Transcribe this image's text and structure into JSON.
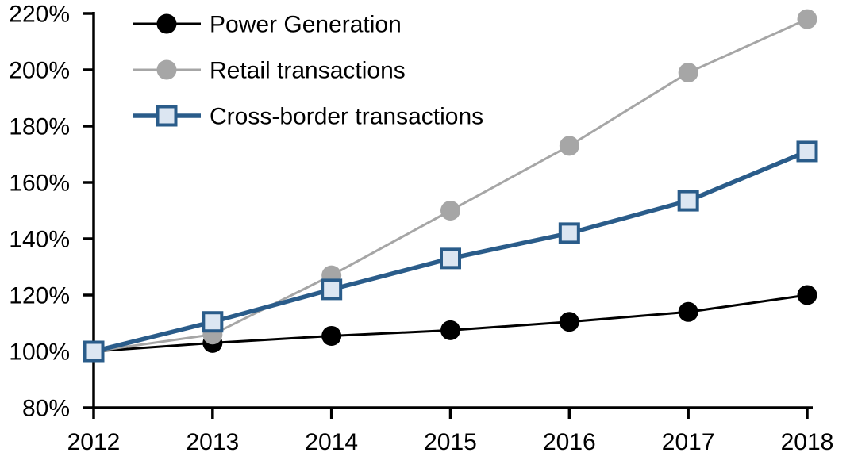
{
  "chart_data": {
    "type": "line",
    "title": "",
    "x_categories": [
      "2012",
      "2013",
      "2014",
      "2015",
      "2016",
      "2017",
      "2018"
    ],
    "y_axis": {
      "min": 80,
      "max": 220,
      "step": 20,
      "tick_suffix": "%",
      "tick_labels": [
        "80%",
        "100%",
        "120%",
        "140%",
        "160%",
        "180%",
        "200%",
        "220%"
      ]
    },
    "grid": false,
    "legend_position": "top-left-inside",
    "background": "#FFFFFF",
    "axis_color": "#000000",
    "text_color": "#000000",
    "series": [
      {
        "name": "Power Generation",
        "color": "#000000",
        "line_width": 3,
        "marker": "circle",
        "marker_fill": "#000000",
        "values": [
          100,
          103,
          105.5,
          107.5,
          110.5,
          114,
          120
        ]
      },
      {
        "name": "Retail transactions",
        "color": "#A6A6A6",
        "line_width": 3,
        "marker": "circle",
        "marker_fill": "#A6A6A6",
        "values": [
          100,
          106,
          127,
          150,
          173,
          199,
          218
        ]
      },
      {
        "name": "Cross-border transactions",
        "color": "#2A5C8A",
        "line_width": 5.5,
        "marker": "square",
        "marker_fill": "#DCE6F2",
        "marker_border": "#2A5C8A",
        "values": [
          100,
          110.5,
          122,
          133,
          142,
          153.5,
          171
        ]
      }
    ]
  }
}
